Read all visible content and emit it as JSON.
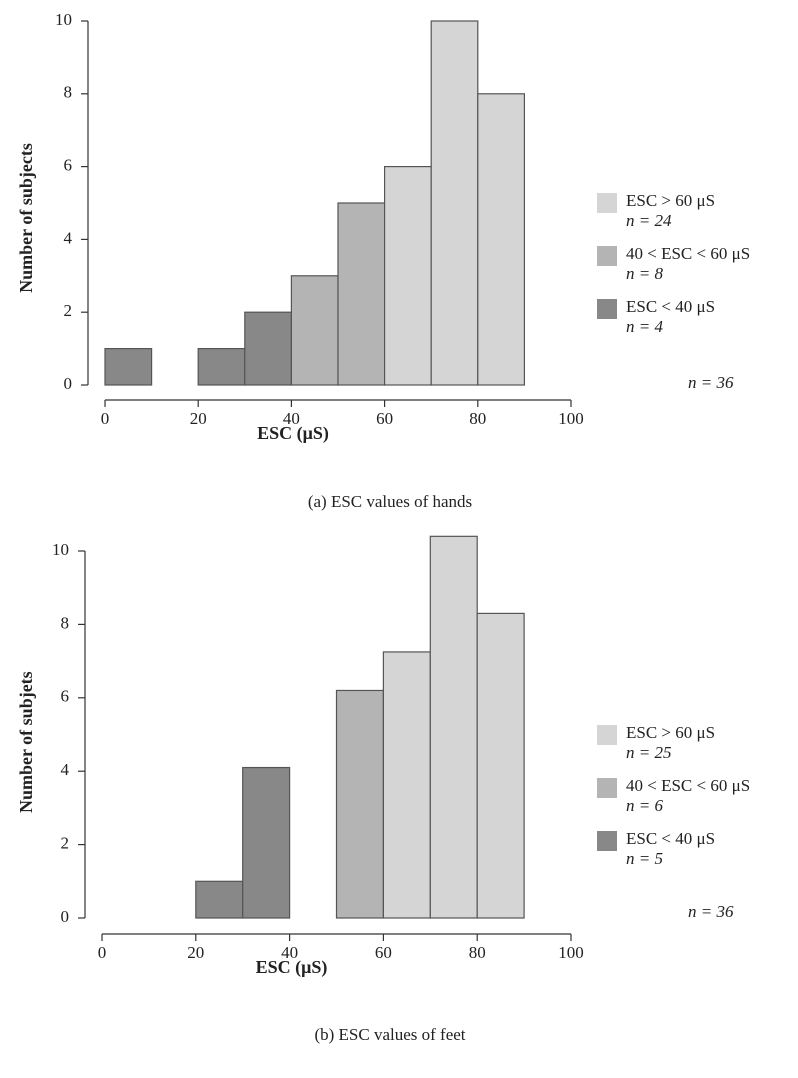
{
  "chart_data": [
    {
      "type": "histogram",
      "x_label": "ESC (μS)",
      "y_label": "Number of subjects",
      "caption": "(a)  ESC values of hands",
      "bins": [
        0,
        10,
        20,
        30,
        40,
        50,
        60,
        70,
        80,
        90
      ],
      "values": [
        1,
        0,
        1,
        2,
        3,
        5,
        6,
        10,
        8
      ],
      "colors": [
        "#888888",
        "#888888",
        "#888888",
        "#888888",
        "#b4b4b4",
        "#b4b4b4",
        "#d5d5d5",
        "#d5d5d5",
        "#d5d5d5"
      ],
      "xlim": [
        0,
        100
      ],
      "xticks": [
        0,
        20,
        40,
        60,
        80,
        100
      ],
      "ylim": [
        0,
        10
      ],
      "yticks": [
        0,
        2,
        4,
        6,
        8,
        10
      ],
      "legend": [
        {
          "name": "ESC > 60 μS",
          "label": "n = 24",
          "color": "#d5d5d5"
        },
        {
          "name": "40 < ESC < 60 μS",
          "label": "n = 8",
          "color": "#b4b4b4"
        },
        {
          "name": "ESC < 40 μS",
          "label": "n = 4",
          "color": "#888888"
        }
      ],
      "note": "n = 36"
    },
    {
      "type": "histogram",
      "x_label": "ESC (μS)",
      "y_label": "Number of subjets",
      "caption": "(b)  ESC values of feet",
      "bins": [
        20,
        30,
        40,
        50,
        60,
        70,
        80,
        90
      ],
      "values": [
        1,
        4.1,
        0,
        6.2,
        7.25,
        10.4,
        8.3
      ],
      "colors": [
        "#888888",
        "#888888",
        "#b4b4b4",
        "#b4b4b4",
        "#d5d5d5",
        "#d5d5d5",
        "#d5d5d5"
      ],
      "xlim": [
        0,
        100
      ],
      "xticks": [
        0,
        20,
        40,
        60,
        80,
        100
      ],
      "ylim": [
        0,
        10.4
      ],
      "yticks": [
        0,
        2,
        4,
        6,
        8,
        10
      ],
      "legend": [
        {
          "name": "ESC > 60 μS",
          "label": "n = 25",
          "color": "#d5d5d5"
        },
        {
          "name": "40 < ESC < 60 μS",
          "label": "n = 6",
          "color": "#b4b4b4"
        },
        {
          "name": "ESC < 40 μS",
          "label": "n = 5",
          "color": "#888888"
        }
      ],
      "note": "n = 36"
    }
  ]
}
